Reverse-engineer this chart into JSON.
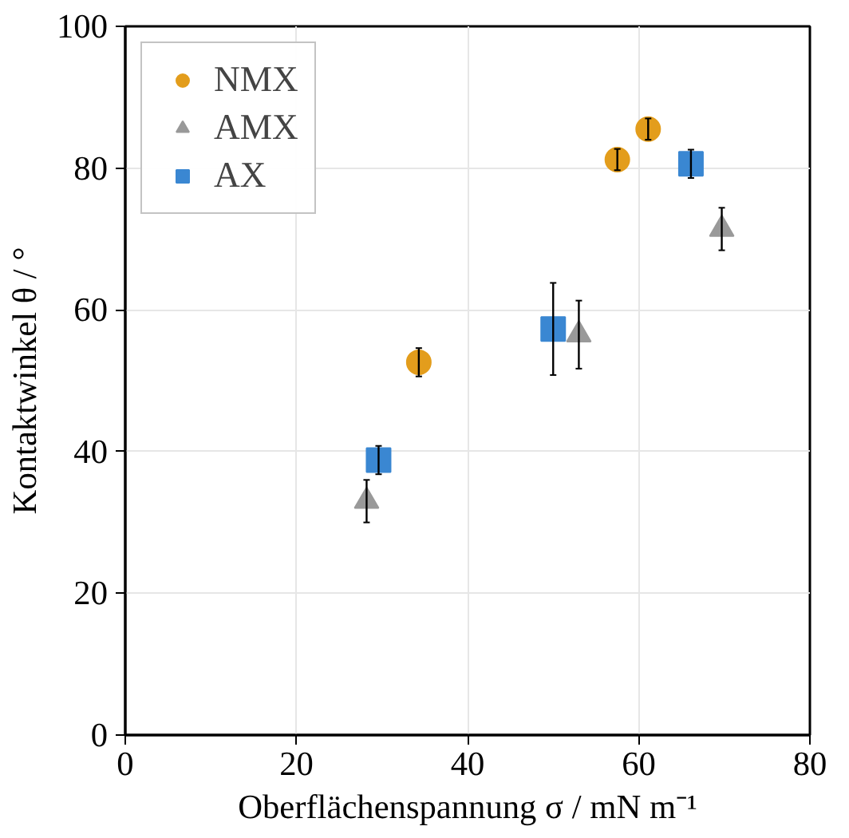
{
  "chart_data": {
    "type": "scatter",
    "xlabel": "Oberflächenspannung σ / mN m⁻¹",
    "ylabel": "Kontaktwinkel θ / °",
    "xlim": [
      0,
      80
    ],
    "ylim": [
      0,
      100
    ],
    "xticks": [
      0,
      20,
      40,
      60,
      80
    ],
    "yticks": [
      0,
      20,
      40,
      60,
      80,
      100
    ],
    "grid": true,
    "legend": "top left",
    "series": [
      {
        "name": "NMX",
        "color": "#e39d1c",
        "marker": "circle",
        "x": [
          34.3,
          57.5,
          61.1
        ],
        "values": [
          52.6,
          81.2,
          85.5
        ],
        "errors": [
          2,
          1.5,
          1.5
        ]
      },
      {
        "name": "AMX",
        "color": "#999999",
        "marker": "triangle",
        "x": [
          28.2,
          53,
          69.7
        ],
        "values": [
          33,
          56.5,
          71.4
        ],
        "errors": [
          3,
          4.8,
          3
        ]
      },
      {
        "name": "AX",
        "color": "#3a87d2",
        "marker": "square",
        "x": [
          29.6,
          50,
          66.1
        ],
        "values": [
          38.8,
          57.3,
          80.6
        ],
        "errors": [
          2,
          6.5,
          2
        ]
      }
    ]
  }
}
